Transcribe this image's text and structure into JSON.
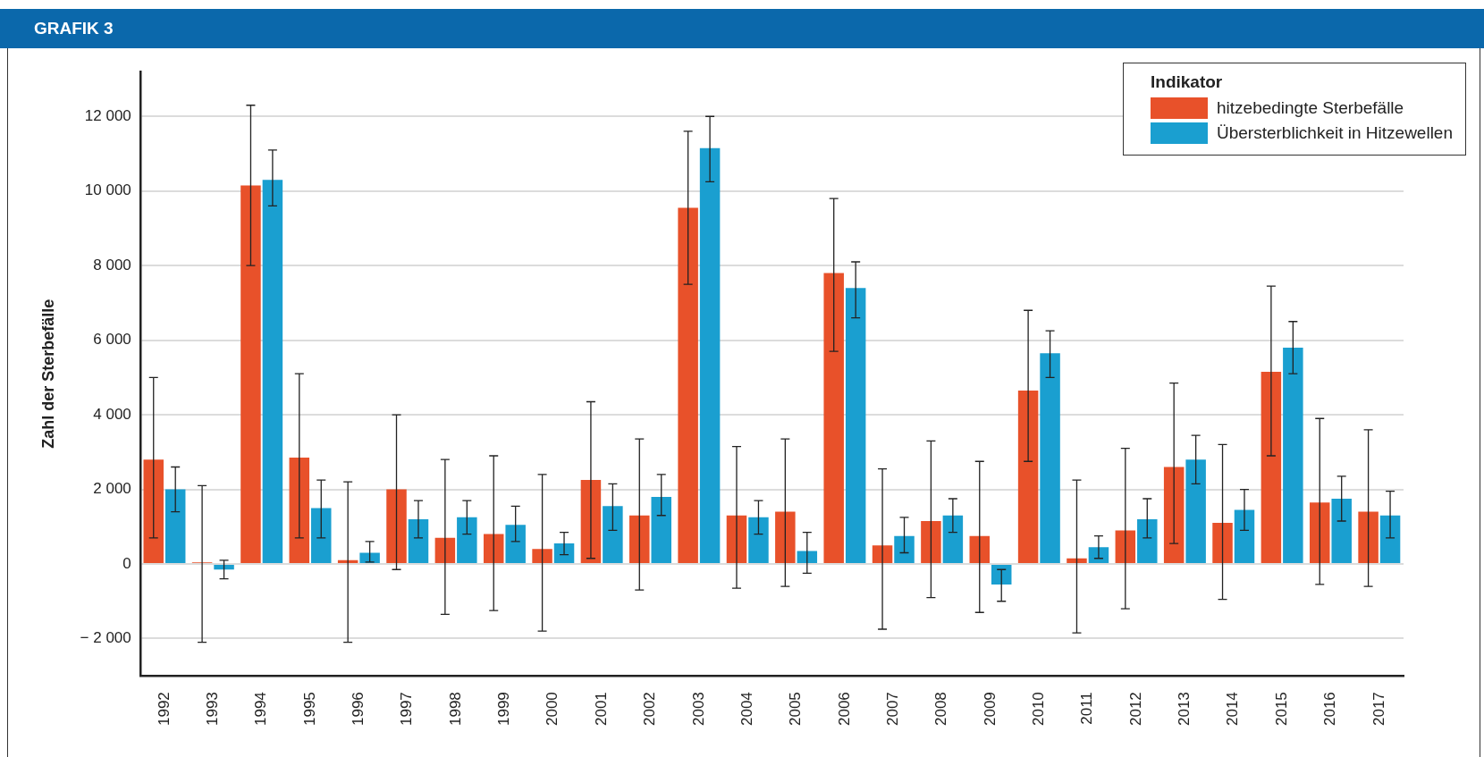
{
  "chart_data": {
    "type": "bar",
    "title": "GRAFIK 3",
    "ylabel": "Zahl der Sterbefälle",
    "legend_title": "Indikator",
    "legend": "top right",
    "grid": "y",
    "categories": [
      "1992",
      "1993",
      "1994",
      "1995",
      "1996",
      "1997",
      "1998",
      "1999",
      "2000",
      "2001",
      "2002",
      "2003",
      "2004",
      "2005",
      "2006",
      "2007",
      "2008",
      "2009",
      "2010",
      "2011",
      "2012",
      "2013",
      "2014",
      "2015",
      "2016",
      "2017"
    ],
    "series": [
      {
        "name": "hitzebedingte Sterbefälle",
        "color": "#e8512a",
        "values": [
          2800,
          40,
          10150,
          2850,
          100,
          2000,
          700,
          800,
          400,
          2250,
          1300,
          9550,
          1300,
          1400,
          7800,
          500,
          1150,
          750,
          4650,
          150,
          900,
          2600,
          1100,
          5150,
          1650,
          1400
        ],
        "errors": [
          [
            700,
            5000
          ],
          [
            -2100,
            2100
          ],
          [
            8000,
            12300
          ],
          [
            700,
            5100
          ],
          [
            -2100,
            2200
          ],
          [
            -150,
            4000
          ],
          [
            -1350,
            2800
          ],
          [
            -1250,
            2900
          ],
          [
            -1800,
            2400
          ],
          [
            150,
            4350
          ],
          [
            -700,
            3350
          ],
          [
            7500,
            11600
          ],
          [
            -650,
            3150
          ],
          [
            -600,
            3350
          ],
          [
            5700,
            9800
          ],
          [
            -1750,
            2550
          ],
          [
            -900,
            3300
          ],
          [
            -1300,
            2750
          ],
          [
            2750,
            6800
          ],
          [
            -1850,
            2250
          ],
          [
            -1200,
            3100
          ],
          [
            550,
            4850
          ],
          [
            -950,
            3200
          ],
          [
            2900,
            7450
          ],
          [
            -550,
            3900
          ],
          [
            -600,
            3600
          ]
        ]
      },
      {
        "name": "Übersterblichkeit in Hitzewellen",
        "color": "#1a9fd0",
        "values": [
          2000,
          -150,
          10300,
          1500,
          300,
          1200,
          1250,
          1050,
          550,
          1550,
          1800,
          11150,
          1250,
          350,
          7400,
          750,
          1300,
          -550,
          5650,
          450,
          1200,
          2800,
          1450,
          5800,
          1750,
          1300
        ],
        "errors": [
          [
            1400,
            2600
          ],
          [
            -400,
            100
          ],
          [
            9600,
            11100
          ],
          [
            700,
            2250
          ],
          [
            50,
            600
          ],
          [
            700,
            1700
          ],
          [
            800,
            1700
          ],
          [
            600,
            1550
          ],
          [
            250,
            850
          ],
          [
            900,
            2150
          ],
          [
            1300,
            2400
          ],
          [
            10250,
            12000
          ],
          [
            800,
            1700
          ],
          [
            -250,
            850
          ],
          [
            6600,
            8100
          ],
          [
            300,
            1250
          ],
          [
            850,
            1750
          ],
          [
            -1000,
            -150
          ],
          [
            5000,
            6250
          ],
          [
            150,
            750
          ],
          [
            700,
            1750
          ],
          [
            2150,
            3450
          ],
          [
            900,
            2000
          ],
          [
            5100,
            6500
          ],
          [
            1150,
            2350
          ],
          [
            700,
            1950
          ]
        ]
      }
    ],
    "ylim": [
      -3000,
      13200
    ],
    "yticks": [
      {
        "value": -2000,
        "label": "− 2 000"
      },
      0,
      {
        "value": 2000,
        "label": "2 000"
      },
      {
        "value": 4000,
        "label": "4 000"
      },
      {
        "value": 6000,
        "label": "6 000"
      },
      {
        "value": 8000,
        "label": "8 000"
      },
      {
        "value": 10000,
        "label": "10 000"
      },
      {
        "value": 12000,
        "label": "12 000"
      }
    ]
  }
}
